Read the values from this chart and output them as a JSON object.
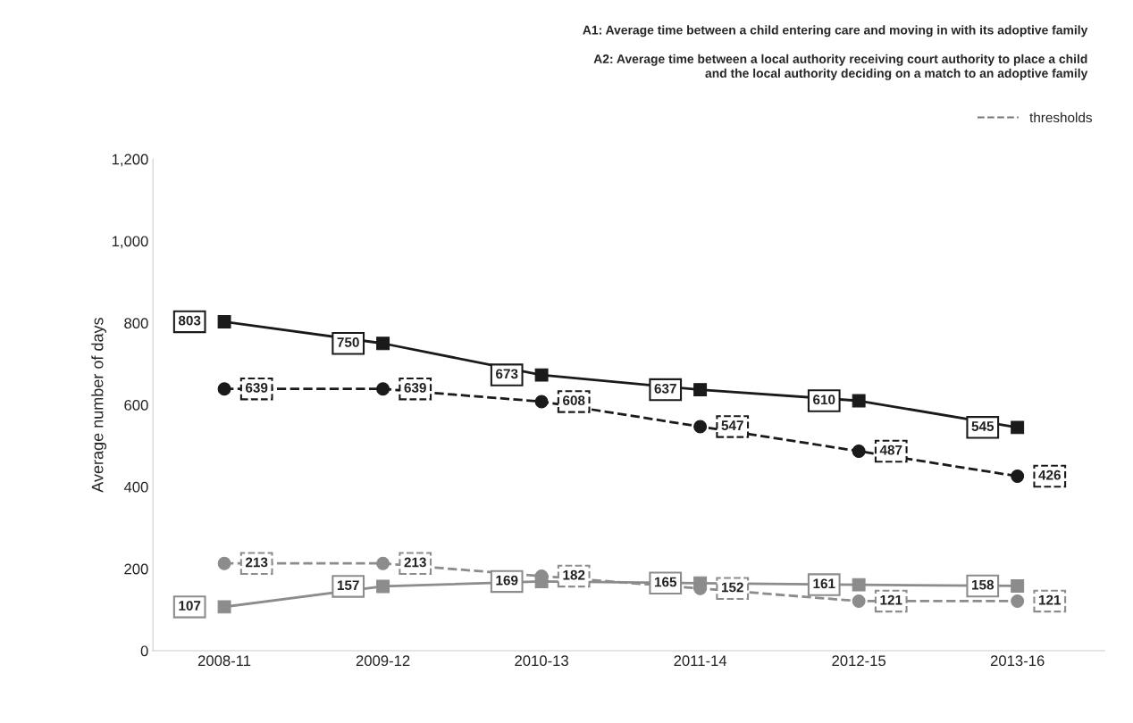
{
  "chart_data": {
    "type": "line",
    "ylabel": "Average number of days",
    "annotations": [
      "A1: Average time between a child entering care and moving in with its adoptive family",
      "A2: Average time between a local authority receiving court authority to place a child\nand the local authority deciding on a match to an adoptive family"
    ],
    "categories": [
      "2008-11",
      "2009-12",
      "2010-13",
      "2011-14",
      "2012-15",
      "2013-16"
    ],
    "series": [
      {
        "color": "#1a1a1a",
        "marker": "square",
        "line_style": "solid",
        "values": [
          803,
          750,
          673,
          637,
          610,
          545
        ]
      },
      {
        "name": "thresholds",
        "color": "#1a1a1a",
        "marker": "circle",
        "line_style": "dashed",
        "values": [
          639,
          639,
          608,
          547,
          487,
          426
        ]
      },
      {
        "color": "#8c8c8c",
        "marker": "square",
        "line_style": "solid",
        "values": [
          107,
          157,
          169,
          165,
          161,
          158
        ]
      },
      {
        "color": "#8c8c8c",
        "marker": "circle",
        "line_style": "dashed",
        "values": [
          213,
          213,
          182,
          152,
          121,
          121
        ]
      }
    ],
    "ylim": [
      0,
      1200
    ],
    "yticks": [
      0,
      200,
      400,
      600,
      800,
      {
        "value": 1000,
        "label": "1,000"
      },
      {
        "value": 1200,
        "label": "1,200"
      }
    ],
    "data_labels": true,
    "grid": false,
    "legend": "top right"
  }
}
